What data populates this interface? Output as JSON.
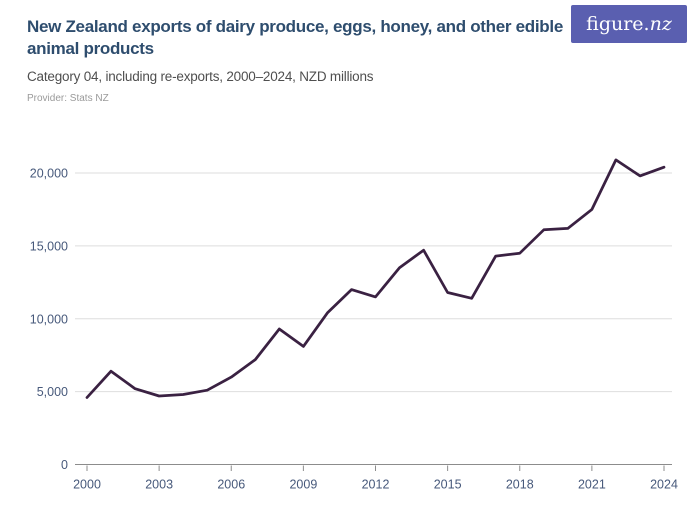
{
  "header": {
    "title": "New Zealand exports of dairy produce, eggs, honey, and other edible animal products",
    "subtitle": "Category 04, including re-exports, 2000–2024, NZD millions",
    "provider": "Provider: Stats NZ"
  },
  "logo": {
    "brand_prefix": "figure.",
    "brand_suffix": "nz",
    "background_color": "#5a5fb0",
    "text_color": "#ffffff"
  },
  "chart_data": {
    "type": "line",
    "title": "New Zealand exports of dairy produce, eggs, honey, and other edible animal products",
    "subtitle": "Category 04, including re-exports, 2000–2024, NZD millions",
    "xlabel": "",
    "ylabel": "NZD millions",
    "x": [
      2000,
      2001,
      2002,
      2003,
      2004,
      2005,
      2006,
      2007,
      2008,
      2009,
      2010,
      2011,
      2012,
      2013,
      2014,
      2015,
      2016,
      2017,
      2018,
      2019,
      2020,
      2021,
      2022,
      2023,
      2024
    ],
    "series": [
      {
        "name": "Exports, NZD millions",
        "values": [
          4600,
          6400,
          5200,
          4700,
          4800,
          5100,
          6000,
          7200,
          9300,
          8100,
          10400,
          12000,
          11500,
          13500,
          14700,
          11800,
          11400,
          14300,
          14500,
          16100,
          16200,
          17500,
          20900,
          19800,
          20400
        ]
      }
    ],
    "ylim": [
      0,
      21500
    ],
    "yticks": [
      0,
      5000,
      10000,
      15000,
      20000
    ],
    "ytick_labels": [
      "0",
      "5,000",
      "10,000",
      "15,000",
      "20,000"
    ],
    "xticks": [
      2000,
      2003,
      2006,
      2009,
      2012,
      2015,
      2018,
      2021,
      2024
    ],
    "grid": "horizontal",
    "legend_position": "none",
    "line_color": "#3a2142",
    "gridline_color": "#dedede",
    "axis_color": "#8c8c8c",
    "tick_label_color": "#47597b"
  }
}
